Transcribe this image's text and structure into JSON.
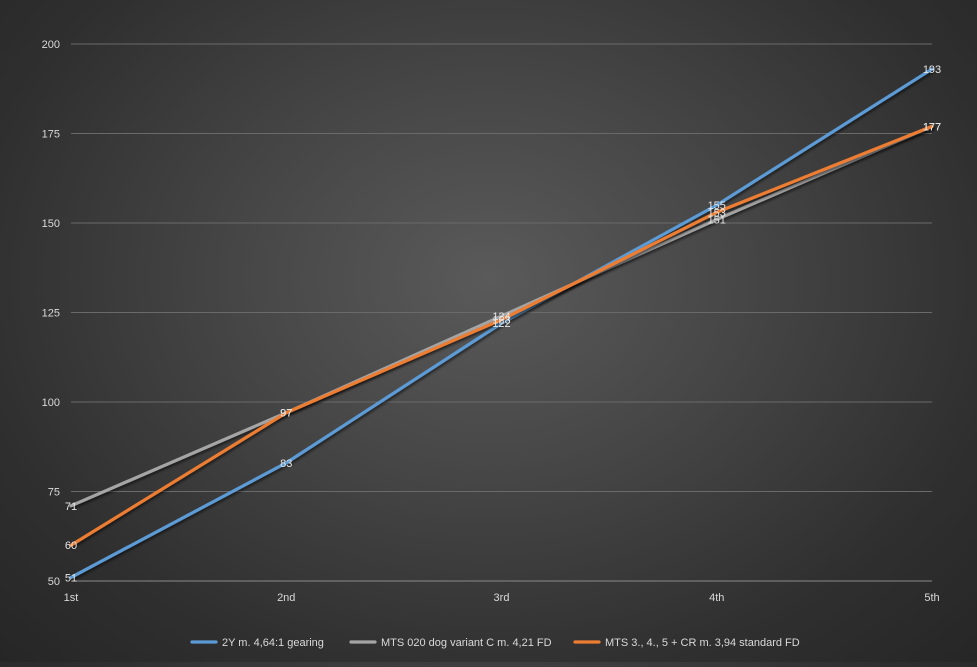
{
  "chart_data": {
    "type": "line",
    "title": "",
    "xlabel": "",
    "ylabel": "",
    "categories": [
      "1st",
      "2nd",
      "3rd",
      "4th",
      "5th"
    ],
    "ylim": [
      50,
      200
    ],
    "yticks": [
      50,
      75,
      100,
      125,
      150,
      175,
      200
    ],
    "grid": true,
    "legend_position": "bottom",
    "data_labels": true,
    "series": [
      {
        "name": "2Y m. 4,64:1 gearing",
        "color": "#5b9bd5",
        "values": [
          51,
          83,
          122,
          155,
          193
        ]
      },
      {
        "name": "MTS 020 dog variant C m. 4,21 FD",
        "color": "#a5a5a5",
        "values": [
          71,
          97,
          124,
          151,
          177
        ]
      },
      {
        "name": "MTS 3., 4., 5 + CR m. 3,94 standard FD",
        "color": "#ed7d31",
        "values": [
          60,
          97,
          123,
          153,
          177
        ]
      }
    ]
  }
}
